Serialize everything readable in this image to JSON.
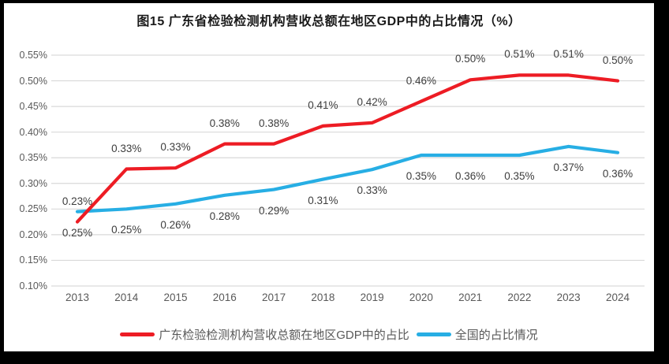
{
  "frame": {
    "background": "#000000",
    "surface_background": "#ffffff"
  },
  "chart_data": {
    "type": "line",
    "title": "图15  广东省检验检测机构营收总额在地区GDP中的占比情况（%）",
    "x": [
      "2013",
      "2014",
      "2015",
      "2016",
      "2017",
      "2018",
      "2019",
      "2020",
      "2021",
      "2022",
      "2023",
      "2024"
    ],
    "xlabel": "",
    "ylabel": "",
    "ylim": [
      0.1,
      0.55
    ],
    "y_ticks": [
      "0.55%",
      "0.50%",
      "0.45%",
      "0.40%",
      "0.35%",
      "0.30%",
      "0.25%",
      "0.20%",
      "0.15%",
      "0.10%"
    ],
    "grid": true,
    "legend_position": "bottom",
    "series": [
      {
        "name": "广东检验检测机构营收总额在地区GDP中的占比",
        "color": "#ed1c24",
        "values": [
          0.23,
          0.33,
          0.33,
          0.38,
          0.38,
          0.41,
          0.42,
          0.46,
          0.5,
          0.51,
          0.51,
          0.5
        ],
        "labels": [
          "0.23%",
          "0.33%",
          "0.33%",
          "0.38%",
          "0.38%",
          "0.41%",
          "0.42%",
          "0.46%",
          "0.50%",
          "0.51%",
          "0.51%",
          "0.50%"
        ],
        "plot_values": [
          0.225,
          0.328,
          0.33,
          0.377,
          0.377,
          0.412,
          0.418,
          0.46,
          0.502,
          0.511,
          0.511,
          0.5
        ],
        "label_side": "above"
      },
      {
        "name": "全国的占比情况",
        "color": "#27aee4",
        "values": [
          0.25,
          0.25,
          0.26,
          0.28,
          0.29,
          0.31,
          0.33,
          0.35,
          0.36,
          0.35,
          0.37,
          0.36
        ],
        "labels": [
          "0.25%",
          "0.25%",
          "0.26%",
          "0.28%",
          "0.29%",
          "0.31%",
          "0.33%",
          "0.35%",
          "0.36%",
          "0.35%",
          "0.37%",
          "0.36%"
        ],
        "plot_values": [
          0.245,
          0.25,
          0.26,
          0.277,
          0.288,
          0.308,
          0.327,
          0.355,
          0.355,
          0.355,
          0.372,
          0.36
        ],
        "label_side": "below"
      }
    ],
    "colors": {
      "gridline": "#d9d9d9",
      "axis_text": "#595959",
      "data_label_text": "#3d3d3d",
      "title_text": "#1a1a1a"
    }
  }
}
